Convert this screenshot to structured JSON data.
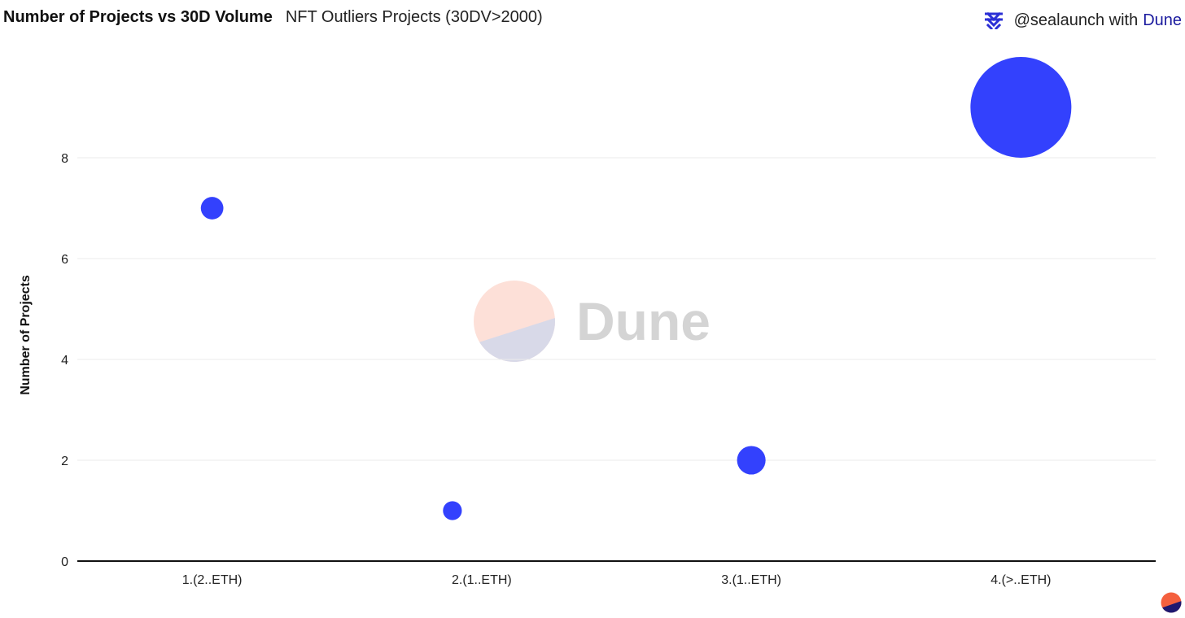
{
  "header": {
    "title": "Number of Projects vs 30D Volume",
    "subtitle": "NFT Outliers Projects (30DV>2000)"
  },
  "attribution": {
    "handle": "@sealaunch with",
    "platform": "Dune",
    "logo_icon": "sealaunch-logo-icon"
  },
  "watermark": {
    "text": "Dune",
    "colors": {
      "top": "#fde0d8",
      "bottom": "#d8d9e8"
    }
  },
  "chart_data": {
    "type": "scatter",
    "xlabel": "",
    "ylabel": "Number of Projects",
    "categories": [
      "1.(2..ETH)",
      "2.(1..ETH)",
      "3.(1..ETH)",
      "4.(>..ETH)"
    ],
    "yticks": [
      0,
      2,
      4,
      6,
      8
    ],
    "ylim": [
      0,
      10
    ],
    "grid": true,
    "color": "#3341fd",
    "points": [
      {
        "category": "1.(2..ETH)",
        "y": 7,
        "size": 0.05
      },
      {
        "category": "2.(1..ETH)",
        "y": 1,
        "size": 0.035
      },
      {
        "category": "3.(1..ETH)",
        "y": 2,
        "size": 0.08
      },
      {
        "category": "4.(>..ETH)",
        "y": 9,
        "size": 1
      }
    ]
  }
}
